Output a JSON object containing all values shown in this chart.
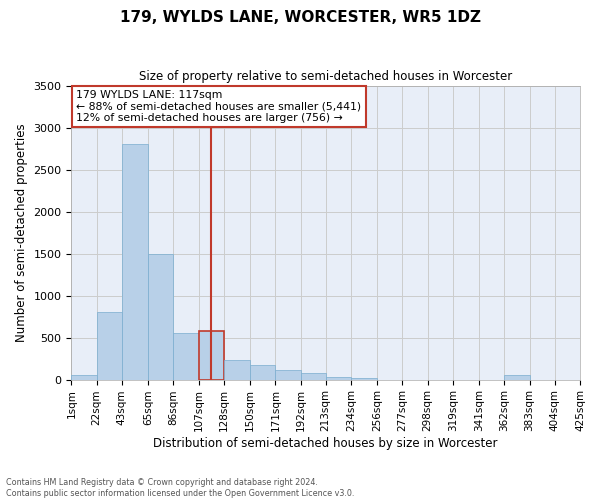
{
  "title": "179, WYLDS LANE, WORCESTER, WR5 1DZ",
  "subtitle": "Size of property relative to semi-detached houses in Worcester",
  "xlabel": "Distribution of semi-detached houses by size in Worcester",
  "ylabel": "Number of semi-detached properties",
  "property_label": "179 WYLDS LANE: 117sqm",
  "annotation_line1": "← 88% of semi-detached houses are smaller (5,441)",
  "annotation_line2": "12% of semi-detached houses are larger (756) →",
  "bin_edges": [
    1,
    22,
    43,
    65,
    86,
    107,
    128,
    150,
    171,
    192,
    213,
    234,
    256,
    277,
    298,
    319,
    341,
    362,
    383,
    404,
    425
  ],
  "bin_labels": [
    "1sqm",
    "22sqm",
    "43sqm",
    "65sqm",
    "86sqm",
    "107sqm",
    "128sqm",
    "150sqm",
    "171sqm",
    "192sqm",
    "213sqm",
    "234sqm",
    "256sqm",
    "277sqm",
    "298sqm",
    "319sqm",
    "341sqm",
    "362sqm",
    "383sqm",
    "404sqm",
    "425sqm"
  ],
  "counts": [
    50,
    800,
    2800,
    1500,
    550,
    580,
    230,
    175,
    120,
    75,
    30,
    20,
    0,
    0,
    0,
    0,
    0,
    50,
    0,
    0,
    0
  ],
  "bar_color": "#b8d0e8",
  "bar_edgecolor": "#7aadcf",
  "highlight_index": 5,
  "highlight_bar_color": "#b8d0e8",
  "highlight_bar_edgecolor": "#c0392b",
  "vline_color": "#c0392b",
  "vline_x": 117,
  "ylim": [
    0,
    3500
  ],
  "yticks": [
    0,
    500,
    1000,
    1500,
    2000,
    2500,
    3000,
    3500
  ],
  "grid_color": "#cccccc",
  "bg_color": "#e8eef8",
  "box_facecolor": "white",
  "box_edgecolor": "#c0392b",
  "footer_line1": "Contains HM Land Registry data © Crown copyright and database right 2024.",
  "footer_line2": "Contains public sector information licensed under the Open Government Licence v3.0."
}
